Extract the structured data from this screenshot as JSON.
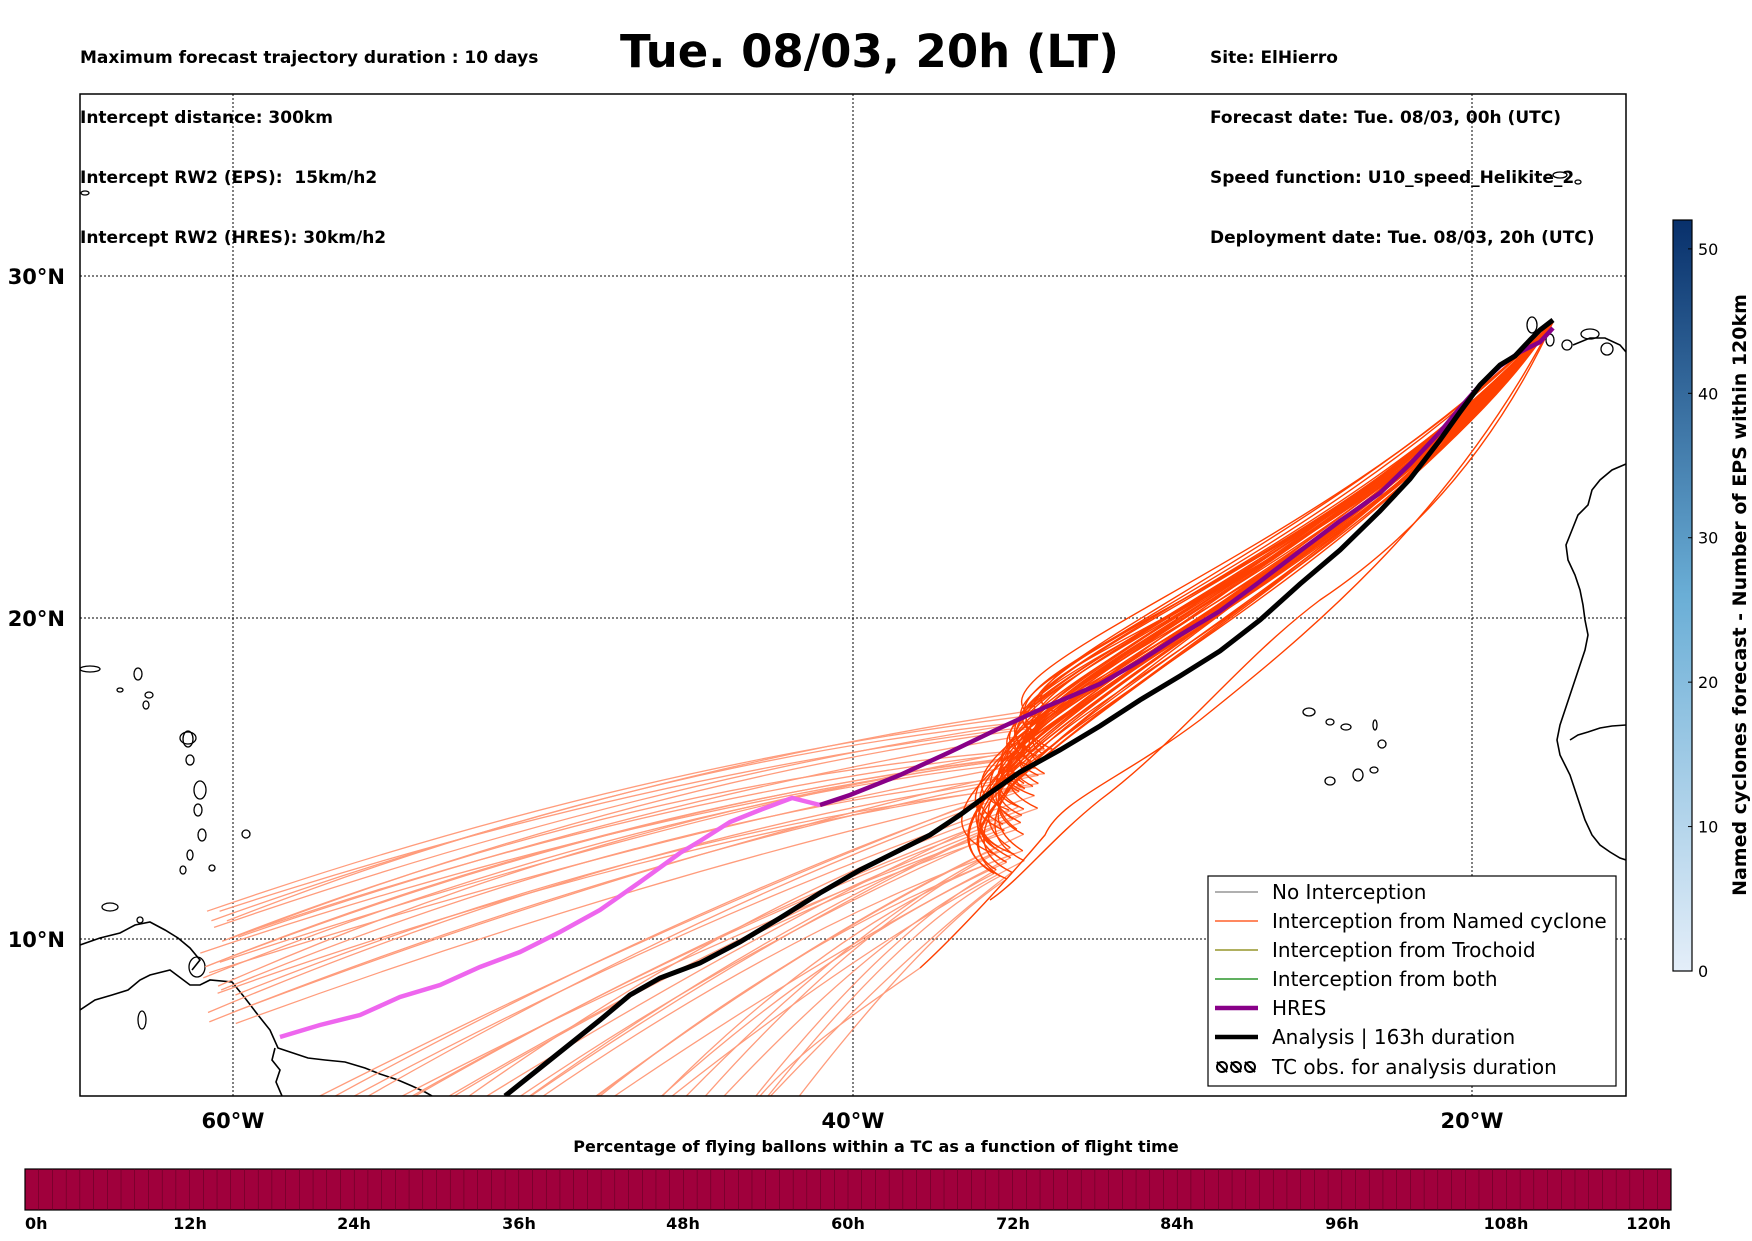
{
  "header": {
    "left_lines": [
      "Maximum forecast trajectory duration : 10 days",
      "Intercept distance: 300km",
      "Intercept RW2 (EPS):  15km/h2",
      "Intercept RW2 (HRES): 30km/h2"
    ],
    "title": "Tue. 08/03, 20h (LT)",
    "right_lines": [
      "Site: ElHierro",
      "Forecast date: Tue. 08/03, 00h (UTC)",
      "Speed function: U10_speed_Helikite_2",
      "Deployment date: Tue. 08/03, 20h (UTC)"
    ]
  },
  "map": {
    "lon_labels": [
      "60°W",
      "40°W",
      "20°W"
    ],
    "lat_labels": [
      "30°N",
      "20°N",
      "10°N"
    ],
    "colors": {
      "named_cyclone": "#ff4000",
      "named_cyclone_light": "#ff9c7c",
      "hres": "#880088",
      "hres_light": "#ee66ee",
      "analysis": "#000000",
      "no_interception": "#808080",
      "trochoid": "#808000",
      "both": "#008000"
    }
  },
  "legend": {
    "items": [
      {
        "label": "No Interception",
        "key": "no_interception"
      },
      {
        "label": "Interception from Named cyclone",
        "key": "named_cyclone"
      },
      {
        "label": "Interception from Trochoid",
        "key": "trochoid"
      },
      {
        "label": "Interception from both",
        "key": "both"
      },
      {
        "label": "HRES",
        "key": "hres"
      },
      {
        "label": "Analysis | 163h duration",
        "key": "analysis"
      },
      {
        "label": "TC obs. for analysis duration",
        "key": "tc_obs"
      }
    ],
    "tc_symbol": "ʘʘʘ"
  },
  "colorbar": {
    "title": "Named cyclones forecast - Number of EPS within 120km",
    "ticks": [
      "0",
      "10",
      "20",
      "30",
      "40",
      "50"
    ],
    "min": 0,
    "max": 52,
    "color_low": "#e4eef9",
    "color_high": "#08306b"
  },
  "timebar": {
    "title": "Percentage of flying ballons within a TC as a function of flight time",
    "labels": [
      "0h",
      "12h",
      "24h",
      "36h",
      "48h",
      "60h",
      "72h",
      "84h",
      "96h",
      "108h",
      "120h"
    ],
    "fill_color": "#a0003c"
  }
}
